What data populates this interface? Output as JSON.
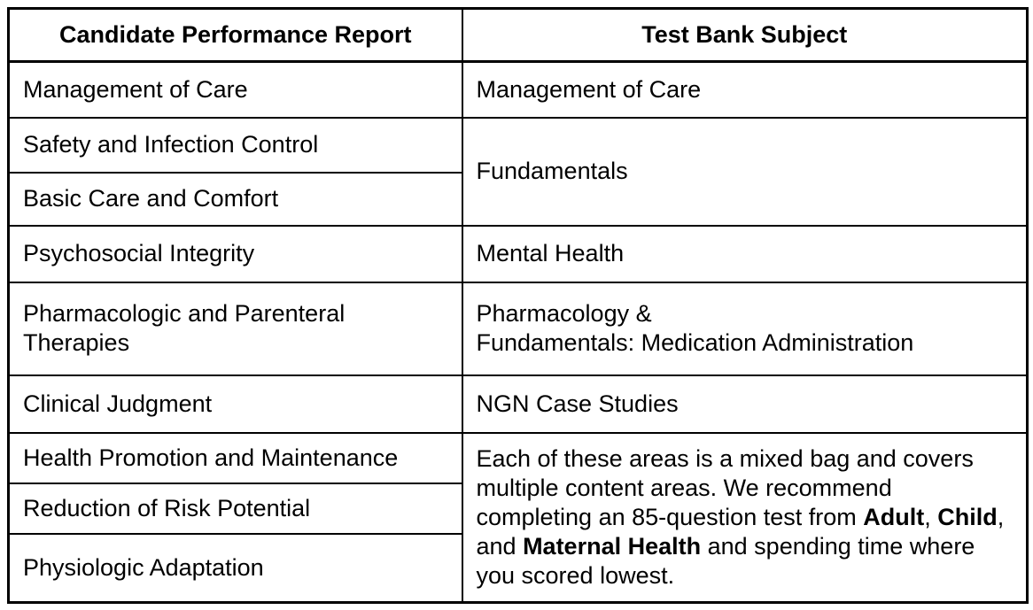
{
  "table": {
    "header": {
      "left": "Candidate Performance Report",
      "right": "Test Bank Subject"
    },
    "left_column": [
      "Management of Care",
      "Safety and Infection Control",
      "Basic Care and Comfort",
      "Psychosocial Integrity",
      "Pharmacologic and Parenteral Therapies",
      "Clinical Judgment",
      "Health Promotion and Maintenance",
      "Reduction of Risk Potential",
      "Physiologic Adaptation"
    ],
    "right_column": {
      "management_of_care": "Management of Care",
      "fundamentals": "Fundamentals",
      "mental_health": "Mental Health",
      "pharmacology_lines": [
        "Pharmacology &",
        "Fundamentals: Medication Administration"
      ],
      "ngn_case_studies": "NGN Case Studies",
      "recommendation": [
        {
          "t": "Each of these areas is a mixed bag and covers multiple content areas. We recommend completing an 85-question test from ",
          "b": false
        },
        {
          "t": "Adult",
          "b": true
        },
        {
          "t": ", ",
          "b": false
        },
        {
          "t": "Child",
          "b": true
        },
        {
          "t": ", and ",
          "b": false
        },
        {
          "t": "Maternal Health",
          "b": true
        },
        {
          "t": " and spending time where you scored lowest.",
          "b": false
        }
      ]
    },
    "colors": {
      "border": "#000000",
      "text": "#000000",
      "background": "#ffffff"
    }
  }
}
